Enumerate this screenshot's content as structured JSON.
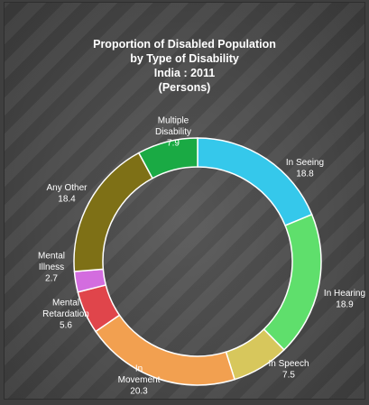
{
  "chart_data": {
    "type": "pie",
    "donut": true,
    "title_lines": [
      "Proportion of Disabled Population",
      "by Type of Disability",
      "India : 2011",
      "(Persons)"
    ],
    "slices": [
      {
        "name_lines": [
          "In Seeing"
        ],
        "value": 18.8,
        "value_text": "18.8",
        "color": "#35c8eb"
      },
      {
        "name_lines": [
          "In Hearing"
        ],
        "value": 18.9,
        "value_text": "18.9",
        "color": "#5fdf6c"
      },
      {
        "name_lines": [
          "In Speech"
        ],
        "value": 7.5,
        "value_text": "7.5",
        "color": "#d7c75c"
      },
      {
        "name_lines": [
          "In",
          "Movement"
        ],
        "value": 20.3,
        "value_text": "20.3",
        "color": "#f2a050"
      },
      {
        "name_lines": [
          "Mental",
          "Retardation"
        ],
        "value": 5.6,
        "value_text": "5.6",
        "color": "#e0454b"
      },
      {
        "name_lines": [
          "Mental",
          "Illness"
        ],
        "value": 2.7,
        "value_text": "2.7",
        "color": "#d36ddf"
      },
      {
        "name_lines": [
          "Any Other"
        ],
        "value": 18.4,
        "value_text": "18.4",
        "color": "#7e7016"
      },
      {
        "name_lines": [
          "Multiple",
          "Disability"
        ],
        "value": 7.9,
        "value_text": "7.9",
        "color": "#1aaa44"
      }
    ]
  }
}
